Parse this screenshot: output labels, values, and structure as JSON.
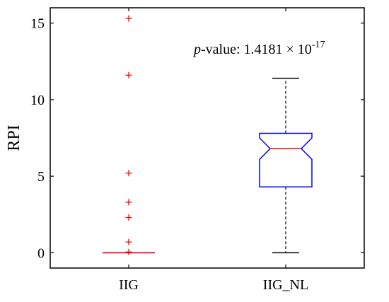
{
  "chart_data": {
    "type": "boxplot",
    "ylabel": "RPI",
    "xlabel": "",
    "ylim": [
      -1,
      16
    ],
    "yticks": [
      0,
      5,
      10,
      15
    ],
    "ytick_labels": [
      "0",
      "5",
      "10",
      "15"
    ],
    "categories": [
      "IIG",
      "IIG_NL"
    ],
    "notched": true,
    "grid": false,
    "boxes": [
      {
        "category": "IIG",
        "q1": 0,
        "median": 0,
        "q3": 0,
        "whisker_low": 0,
        "whisker_high": 0,
        "notch_low": 0,
        "notch_high": 0,
        "outliers": [
          0.05,
          0.7,
          2.3,
          3.3,
          5.2,
          11.6,
          15.3
        ]
      },
      {
        "category": "IIG_NL",
        "q1": 4.3,
        "median": 6.8,
        "q3": 7.8,
        "whisker_low": 0,
        "whisker_high": 11.4,
        "notch_low": 6.1,
        "notch_high": 7.5,
        "outliers": []
      }
    ],
    "annotation": {
      "p_italic": "p",
      "label_rest": "-value: 1.4181 × 10",
      "exponent": "-17"
    },
    "colors": {
      "box": "#0000ff",
      "median": "#ff0000",
      "outlier": "#ff0000",
      "whisker": "#000000",
      "axis": "#000000"
    }
  }
}
